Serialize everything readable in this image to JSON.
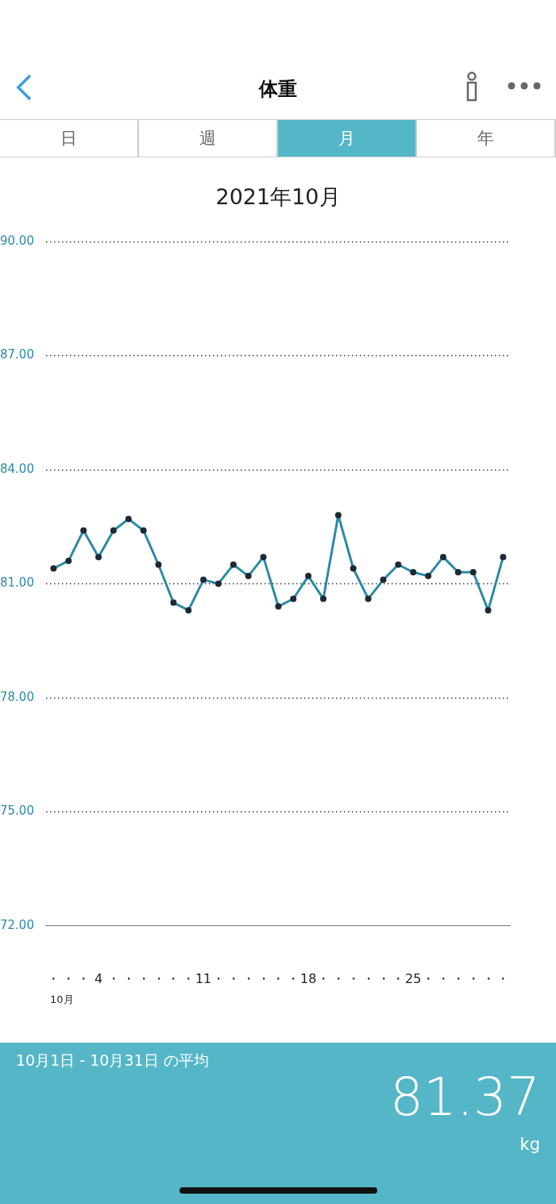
{
  "chart_data": {
    "type": "line",
    "title": "体重",
    "subtitle": "2021年10月",
    "categories": [
      "・",
      "・",
      "・",
      "4",
      "・",
      "・",
      "・",
      "・",
      "・",
      "・",
      "11",
      "・",
      "・",
      "・",
      "・",
      "・",
      "・",
      "18",
      "・",
      "・",
      "・",
      "・",
      "・",
      "・",
      "25",
      "・",
      "・",
      "・",
      "・",
      "・",
      "・"
    ],
    "series": [
      {
        "color": "#2a8aa6",
        "values": [
          81.4,
          81.6,
          82.4,
          81.7,
          82.4,
          82.7,
          82.4,
          81.5,
          80.5,
          80.3,
          81.1,
          81.0,
          81.5,
          81.2,
          81.7,
          80.4,
          80.6,
          81.2,
          80.6,
          82.8,
          81.4,
          80.6,
          81.1,
          81.5,
          81.3,
          81.2,
          81.7,
          81.3,
          81.3,
          80.3,
          81.7
        ]
      }
    ],
    "ylim": [
      72,
      90
    ],
    "yticks": [
      {
        "value": 72,
        "label": "72.00"
      },
      {
        "value": 75,
        "label": "75.00"
      },
      {
        "value": 78,
        "label": "78.00"
      },
      {
        "value": 81,
        "label": "81.00"
      },
      {
        "value": 84,
        "label": "84.00"
      },
      {
        "value": 87,
        "label": "87.00"
      },
      {
        "value": 90,
        "label": "90.00"
      }
    ],
    "grid": "y",
    "legend": false,
    "marker": "circle",
    "line_style": "solid",
    "annotations": [
      "10月",
      "日",
      "週",
      "月",
      "年",
      "10月1日 - 10月31日 の平均",
      "81.37",
      "kg"
    ]
  }
}
